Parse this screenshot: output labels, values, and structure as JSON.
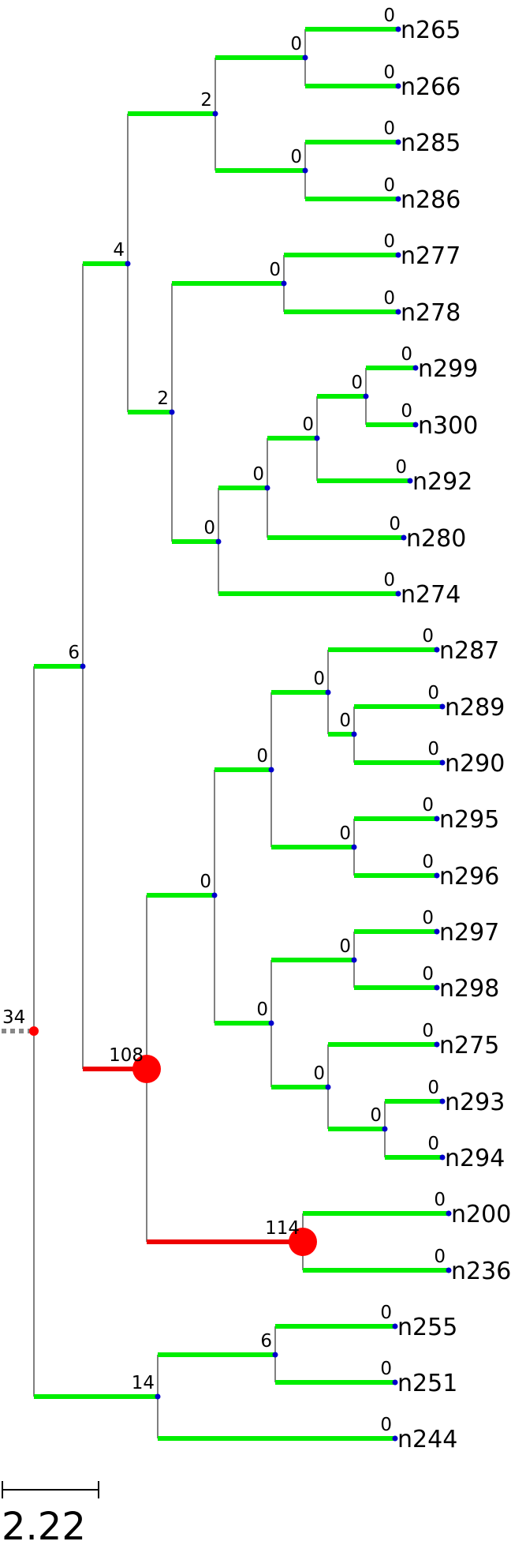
{
  "colors": {
    "good_branch": "#00ee00",
    "bad_branch": "#ee0000",
    "connector": "#000000",
    "node_dot": "#0000cc",
    "event_marker": "#ff0000",
    "root_stub": "#888888"
  },
  "tree": {
    "root_label": "34",
    "internal_labels": {
      "A6": "6",
      "B4": "4",
      "C2": "2",
      "D0a": "0",
      "D0b": "0",
      "C2b": "2",
      "E0": "0",
      "F0": "0",
      "G0": "0",
      "H0": "0",
      "I0": "0",
      "J108": "108",
      "K0": "0",
      "L0": "0",
      "M0": "0",
      "N0": "0",
      "O0": "0",
      "P0": "0",
      "Q0": "0",
      "R0": "0",
      "S114": "114",
      "T14": "14",
      "U6": "6"
    },
    "tips": [
      {
        "name": "n265",
        "label": "0"
      },
      {
        "name": "n266",
        "label": "0"
      },
      {
        "name": "n285",
        "label": "0"
      },
      {
        "name": "n286",
        "label": "0"
      },
      {
        "name": "n277",
        "label": "0"
      },
      {
        "name": "n278",
        "label": "0"
      },
      {
        "name": "n299",
        "label": "0"
      },
      {
        "name": "n300",
        "label": "0"
      },
      {
        "name": "n292",
        "label": "0"
      },
      {
        "name": "n280",
        "label": "0"
      },
      {
        "name": "n274",
        "label": "0"
      },
      {
        "name": "n287",
        "label": "0"
      },
      {
        "name": "n289",
        "label": "0"
      },
      {
        "name": "n290",
        "label": "0"
      },
      {
        "name": "n295",
        "label": "0"
      },
      {
        "name": "n296",
        "label": "0"
      },
      {
        "name": "n297",
        "label": "0"
      },
      {
        "name": "n298",
        "label": "0"
      },
      {
        "name": "n275",
        "label": "0"
      },
      {
        "name": "n293",
        "label": "0"
      },
      {
        "name": "n294",
        "label": "0"
      },
      {
        "name": "n200",
        "label": "0"
      },
      {
        "name": "n236",
        "label": "0"
      },
      {
        "name": "n255",
        "label": "0"
      },
      {
        "name": "n251",
        "label": "0"
      },
      {
        "name": "n244",
        "label": "0"
      }
    ]
  },
  "scale_bar": {
    "value": "2.22"
  }
}
